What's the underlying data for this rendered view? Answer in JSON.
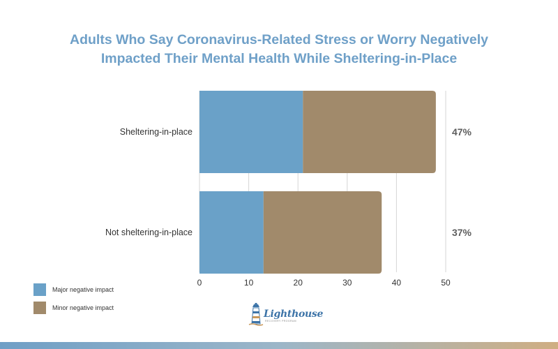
{
  "title": {
    "line1": "Adults Who Say Coronavirus-Related Stress or Worry Negatively",
    "line2": "Impacted Their Mental Health While Sheltering-in-Place"
  },
  "colors": {
    "title": "#6fa0c8",
    "major": "#6aa1c8",
    "minor": "#a18a6b",
    "grid": "#d6d6d6"
  },
  "legend": {
    "major": "Major negative impact",
    "minor": "Minor negative impact"
  },
  "logo": {
    "name": "Lighthouse",
    "tagline": "RECOVERY PROGRAM",
    "icon": "lighthouse-icon"
  },
  "chart_data": {
    "type": "bar",
    "orientation": "horizontal",
    "stacked": true,
    "categories": [
      "Sheltering-in-place",
      "Not sheltering-in-place"
    ],
    "series": [
      {
        "name": "Major negative impact",
        "values": [
          21,
          13
        ]
      },
      {
        "name": "Minor negative impact",
        "values": [
          27,
          24
        ]
      }
    ],
    "totals": [
      "47%",
      "37%"
    ],
    "xticks": [
      "0",
      "10",
      "20",
      "30",
      "40",
      "50"
    ],
    "xlim": [
      0,
      50
    ],
    "grid": true,
    "legend_position": "bottom-left"
  }
}
